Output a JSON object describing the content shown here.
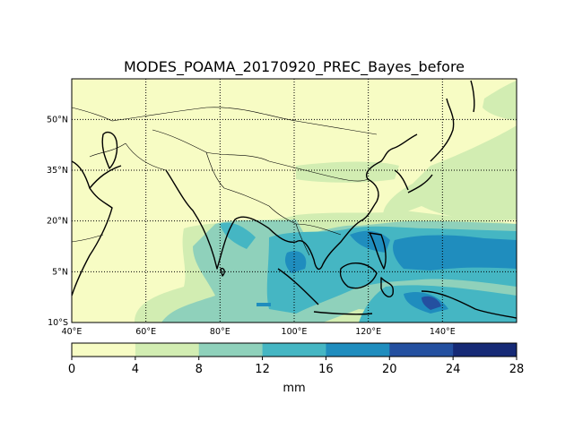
{
  "title": "MODES_POAMA_20170920_PREC_Bayes_before",
  "map": {
    "lon_range": [
      40,
      160
    ],
    "lat_range": [
      -10,
      62
    ],
    "lon_ticks": [
      {
        "value": 40,
        "label": "40°E"
      },
      {
        "value": 60,
        "label": "60°E"
      },
      {
        "value": 80,
        "label": "80°E"
      },
      {
        "value": 100,
        "label": "100°E"
      },
      {
        "value": 120,
        "label": "120°E"
      },
      {
        "value": 140,
        "label": "140°E"
      }
    ],
    "lat_ticks": [
      {
        "value": -10,
        "label": "10°S"
      },
      {
        "value": 5,
        "label": "5°N"
      },
      {
        "value": 20,
        "label": "20°N"
      },
      {
        "value": 35,
        "label": "35°N"
      },
      {
        "value": 50,
        "label": "50°N"
      }
    ],
    "gridlines": "dotted"
  },
  "colorbar": {
    "levels": [
      0,
      4,
      8,
      12,
      16,
      20,
      24,
      28
    ],
    "colors": [
      "#f7fcc4",
      "#d2edb2",
      "#8fd1bb",
      "#45b6c3",
      "#1f8dbe",
      "#2450a0",
      "#162a76"
    ],
    "unit": "mm"
  },
  "colors": {
    "coastline": "#000000",
    "borders": "#000000",
    "grid": "#000000"
  }
}
